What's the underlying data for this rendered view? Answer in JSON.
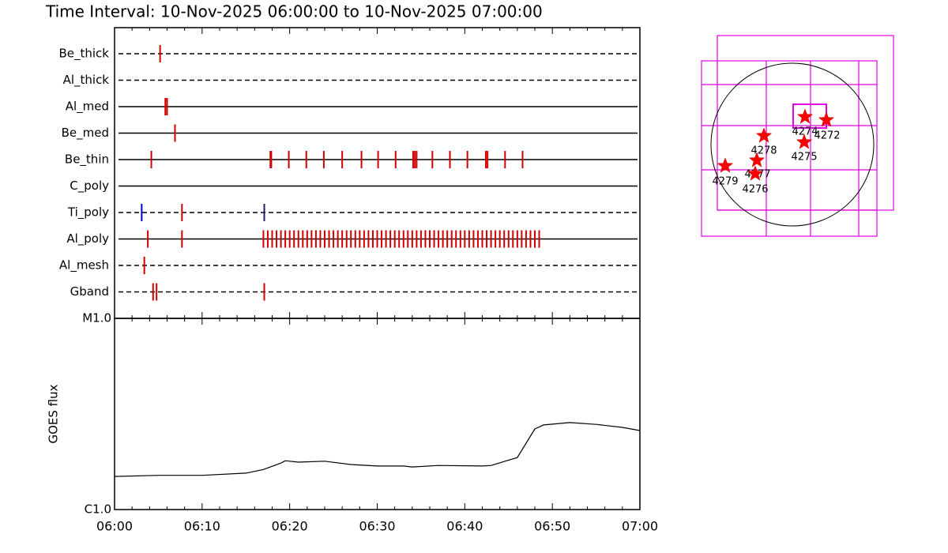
{
  "title": "Time Interval: 10-Nov-2025 06:00:00 to 10-Nov-2025 07:00:00",
  "chart_data": [
    {
      "type": "timeline",
      "xlim": [
        0,
        60
      ],
      "rows": [
        {
          "name": "Be_thick",
          "style": "dashed",
          "color": "#d00000",
          "events": [
            5.2
          ]
        },
        {
          "name": "Al_thick",
          "style": "dashed",
          "color": "#d00000",
          "events": []
        },
        {
          "name": "Al_med",
          "style": "solid",
          "color": "#d00000",
          "events": [
            5.8,
            6.0
          ]
        },
        {
          "name": "Be_med",
          "style": "solid",
          "color": "#d00000",
          "events": [
            6.9
          ]
        },
        {
          "name": "Be_thin",
          "style": "solid",
          "color": "#d00000",
          "events": [
            4.2,
            17.8,
            17.9,
            19.9,
            21.9,
            23.9,
            26.0,
            28.2,
            30.1,
            32.1,
            34.1,
            34.3,
            34.5,
            36.3,
            38.3,
            40.3,
            42.4,
            42.6,
            44.6,
            46.6
          ]
        },
        {
          "name": "C_poly",
          "style": "solid",
          "color": "#d00000",
          "events": []
        },
        {
          "name": "Ti_poly",
          "style": "dashed",
          "color": "#d00000",
          "events": [
            3.1,
            7.7,
            17.1
          ],
          "event_colors": [
            "#0000cc",
            "#d00000",
            "#202060"
          ]
        },
        {
          "name": "Al_poly",
          "style": "solid",
          "color": "#d00000",
          "events": [
            3.8,
            7.7,
            17,
            17.5,
            18,
            18.5,
            19,
            19.5,
            20,
            20.5,
            21,
            21.5,
            22,
            22.5,
            23,
            23.5,
            24,
            24.5,
            25,
            25.5,
            26,
            26.5,
            27,
            27.5,
            28,
            28.5,
            29,
            29.5,
            30,
            30.5,
            31,
            31.5,
            32,
            32.5,
            33,
            33.5,
            34,
            34.5,
            35,
            35.5,
            36,
            36.5,
            37,
            37.5,
            38,
            38.5,
            39,
            39.5,
            40,
            40.5,
            41,
            41.5,
            42,
            42.5,
            43,
            43.5,
            44,
            44.5,
            45,
            45.5,
            46,
            46.5,
            47,
            47.5,
            48,
            48.5
          ]
        },
        {
          "name": "Al_mesh",
          "style": "dashed",
          "color": "#d00000",
          "events": [
            3.4
          ]
        },
        {
          "name": "Gband",
          "style": "dashed",
          "color": "#d00000",
          "events": [
            4.4,
            4.8,
            17.1
          ]
        }
      ]
    },
    {
      "type": "line",
      "ylabel": "GOES flux",
      "log": true,
      "color": "#000000",
      "xlim": [
        0,
        60
      ],
      "xticks": [
        {
          "value": 0,
          "label": "06:00"
        },
        {
          "value": 10,
          "label": "06:10"
        },
        {
          "value": 20,
          "label": "06:20"
        },
        {
          "value": 30,
          "label": "06:30"
        },
        {
          "value": 40,
          "label": "06:40"
        },
        {
          "value": 50,
          "label": "06:50"
        },
        {
          "value": 60,
          "label": "07:00"
        }
      ],
      "xminor": [
        2,
        4,
        6,
        8,
        12,
        14,
        16,
        18,
        22,
        24,
        26,
        28,
        32,
        34,
        36,
        38,
        42,
        44,
        46,
        48,
        52,
        54,
        56,
        58
      ],
      "ylim": [
        1,
        10
      ],
      "yticks": [
        {
          "value": 1,
          "label": "C1.0"
        },
        {
          "value": 10,
          "label": "M1.0"
        }
      ],
      "x": [
        0,
        5,
        10,
        15,
        17,
        19,
        19.5,
        21,
        24,
        27,
        30,
        33,
        34,
        37,
        42,
        43,
        46,
        48,
        49,
        52,
        55,
        58,
        60
      ],
      "values": [
        1.49,
        1.51,
        1.51,
        1.55,
        1.62,
        1.75,
        1.8,
        1.77,
        1.79,
        1.72,
        1.69,
        1.69,
        1.67,
        1.7,
        1.69,
        1.7,
        1.87,
        2.64,
        2.77,
        2.85,
        2.79,
        2.69,
        2.59
      ]
    }
  ],
  "map": {
    "regions": [
      "4274",
      "4272",
      "4275",
      "4278",
      "4277",
      "4276",
      "4279"
    ]
  }
}
